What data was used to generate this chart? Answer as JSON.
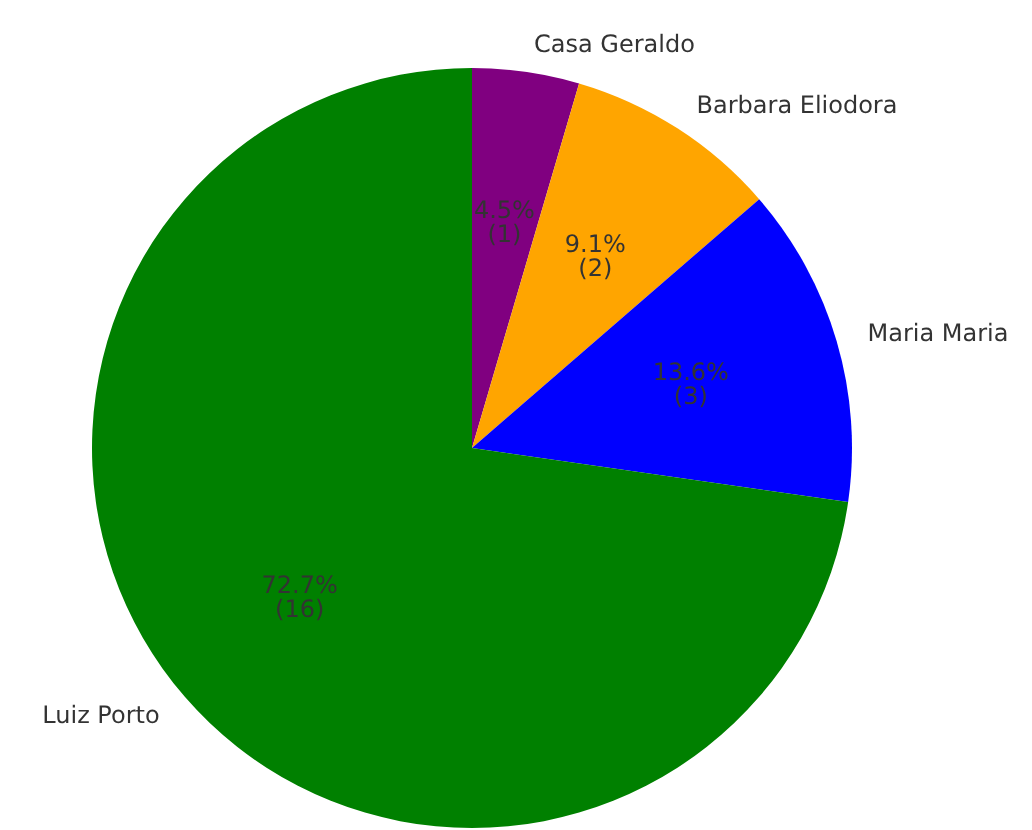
{
  "chart_data": {
    "type": "pie",
    "categories": [
      "Casa Geraldo",
      "Barbara Eliodora",
      "Maria Maria",
      "Luiz Porto"
    ],
    "values": [
      1,
      2,
      3,
      16
    ],
    "value_labels": [
      "4.5%\n(1)",
      "9.1%\n(2)",
      "13.6%\n(3)",
      "72.7%\n(16)"
    ],
    "colors": [
      "#800080",
      "#ffa500",
      "#0000ff",
      "#008000"
    ],
    "legend": false
  }
}
